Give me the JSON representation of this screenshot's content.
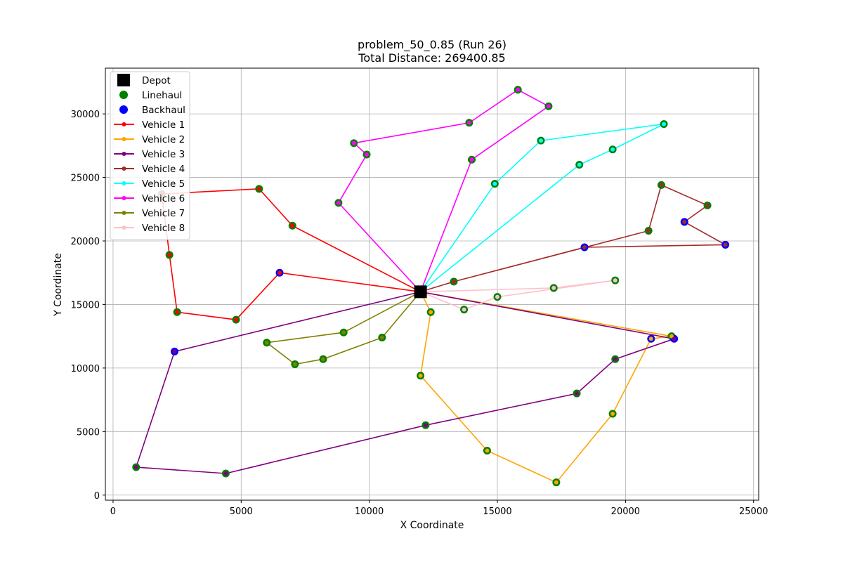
{
  "chart_data": {
    "type": "scatter",
    "title": "problem_50_0.85 (Run 26)",
    "subtitle": "Total Distance: 269400.85",
    "xlabel": "X Coordinate",
    "ylabel": "Y Coordinate",
    "xlim": [
      -300,
      25200
    ],
    "ylim": [
      -400,
      33600
    ],
    "x_ticks": [
      0,
      5000,
      10000,
      15000,
      20000,
      25000
    ],
    "y_ticks": [
      0,
      5000,
      10000,
      15000,
      20000,
      25000,
      30000
    ],
    "grid": true,
    "legend_position": "top-left",
    "depot": {
      "name": "Depot",
      "color": "#000000",
      "x": 12000,
      "y": 16000
    },
    "linehaul": {
      "name": "Linehaul",
      "color": "#008000",
      "points": [
        [
          1900,
          23700
        ],
        [
          5700,
          24100
        ],
        [
          7000,
          21200
        ],
        [
          2200,
          18900
        ],
        [
          2500,
          14400
        ],
        [
          4800,
          13800
        ],
        [
          13300,
          16800
        ],
        [
          20900,
          20800
        ],
        [
          21400,
          24400
        ],
        [
          23200,
          22800
        ],
        [
          14900,
          24500
        ],
        [
          16700,
          27900
        ],
        [
          21500,
          29200
        ],
        [
          18200,
          26000
        ],
        [
          19500,
          27200
        ],
        [
          8800,
          23000
        ],
        [
          9900,
          26800
        ],
        [
          9400,
          27700
        ],
        [
          13900,
          29300
        ],
        [
          15800,
          31900
        ],
        [
          17000,
          30600
        ],
        [
          14000,
          26400
        ],
        [
          12400,
          14400
        ],
        [
          12000,
          9400
        ],
        [
          14600,
          3500
        ],
        [
          17300,
          1000
        ],
        [
          19500,
          6400
        ],
        [
          21800,
          12500
        ],
        [
          18100,
          8000
        ],
        [
          19600,
          10700
        ],
        [
          12200,
          5500
        ],
        [
          4400,
          1700
        ],
        [
          900,
          2200
        ],
        [
          10500,
          12400
        ],
        [
          8200,
          10700
        ],
        [
          7100,
          10300
        ],
        [
          6000,
          12000
        ],
        [
          9000,
          12800
        ],
        [
          13700,
          14600
        ],
        [
          15000,
          15600
        ],
        [
          17200,
          16300
        ],
        [
          19600,
          16900
        ]
      ]
    },
    "backhaul": {
      "name": "Backhaul",
      "color": "#0000ff",
      "points": [
        [
          6500,
          17500
        ],
        [
          18400,
          19500
        ],
        [
          22300,
          21500
        ],
        [
          23900,
          19700
        ],
        [
          21000,
          12300
        ],
        [
          21900,
          12300
        ],
        [
          2400,
          11300
        ]
      ]
    },
    "routes": [
      {
        "name": "Vehicle 1",
        "color": "#ff0000",
        "x": [
          12000,
          7000,
          5700,
          1900,
          2200,
          2500,
          4800,
          6500,
          12000
        ],
        "y": [
          16000,
          21200,
          24100,
          23700,
          18900,
          14400,
          13800,
          17500,
          16000
        ]
      },
      {
        "name": "Vehicle 2",
        "color": "#ffa500",
        "x": [
          12000,
          12400,
          12000,
          14600,
          17300,
          19500,
          21000,
          21800,
          12000
        ],
        "y": [
          16000,
          14400,
          9400,
          3500,
          1000,
          6400,
          12300,
          12500,
          16000
        ]
      },
      {
        "name": "Vehicle 3",
        "color": "#800080",
        "x": [
          12000,
          21900,
          19600,
          18100,
          12200,
          4400,
          900,
          2400,
          12000
        ],
        "y": [
          16000,
          12300,
          10700,
          8000,
          5500,
          1700,
          2200,
          11300,
          16000
        ]
      },
      {
        "name": "Vehicle 4",
        "color": "#a52a2a",
        "x": [
          12000,
          13300,
          20900,
          21400,
          23200,
          22300,
          23900,
          18400,
          13300,
          12000
        ],
        "y": [
          16000,
          16800,
          20800,
          24400,
          22800,
          21500,
          19700,
          19500,
          16800,
          16000
        ]
      },
      {
        "name": "Vehicle 5",
        "color": "#00ffff",
        "x": [
          12000,
          14900,
          16700,
          21500,
          19500,
          18200,
          12000
        ],
        "y": [
          16000,
          24500,
          27900,
          29200,
          27200,
          26000,
          16000
        ]
      },
      {
        "name": "Vehicle 6",
        "color": "#ff00ff",
        "x": [
          12000,
          8800,
          9900,
          9400,
          13900,
          15800,
          17000,
          14000,
          12000
        ],
        "y": [
          16000,
          23000,
          26800,
          27700,
          29300,
          31900,
          30600,
          26400,
          16000
        ]
      },
      {
        "name": "Vehicle 7",
        "color": "#808000",
        "x": [
          12000,
          10500,
          8200,
          7100,
          6000,
          9000,
          12000
        ],
        "y": [
          16000,
          12400,
          10700,
          10300,
          12000,
          12800,
          16000
        ]
      },
      {
        "name": "Vehicle 8",
        "color": "#ffc0cb",
        "x": [
          12000,
          13700,
          15000,
          19600,
          17200,
          12000
        ],
        "y": [
          16000,
          14600,
          15600,
          16900,
          16300,
          16000
        ]
      }
    ]
  }
}
